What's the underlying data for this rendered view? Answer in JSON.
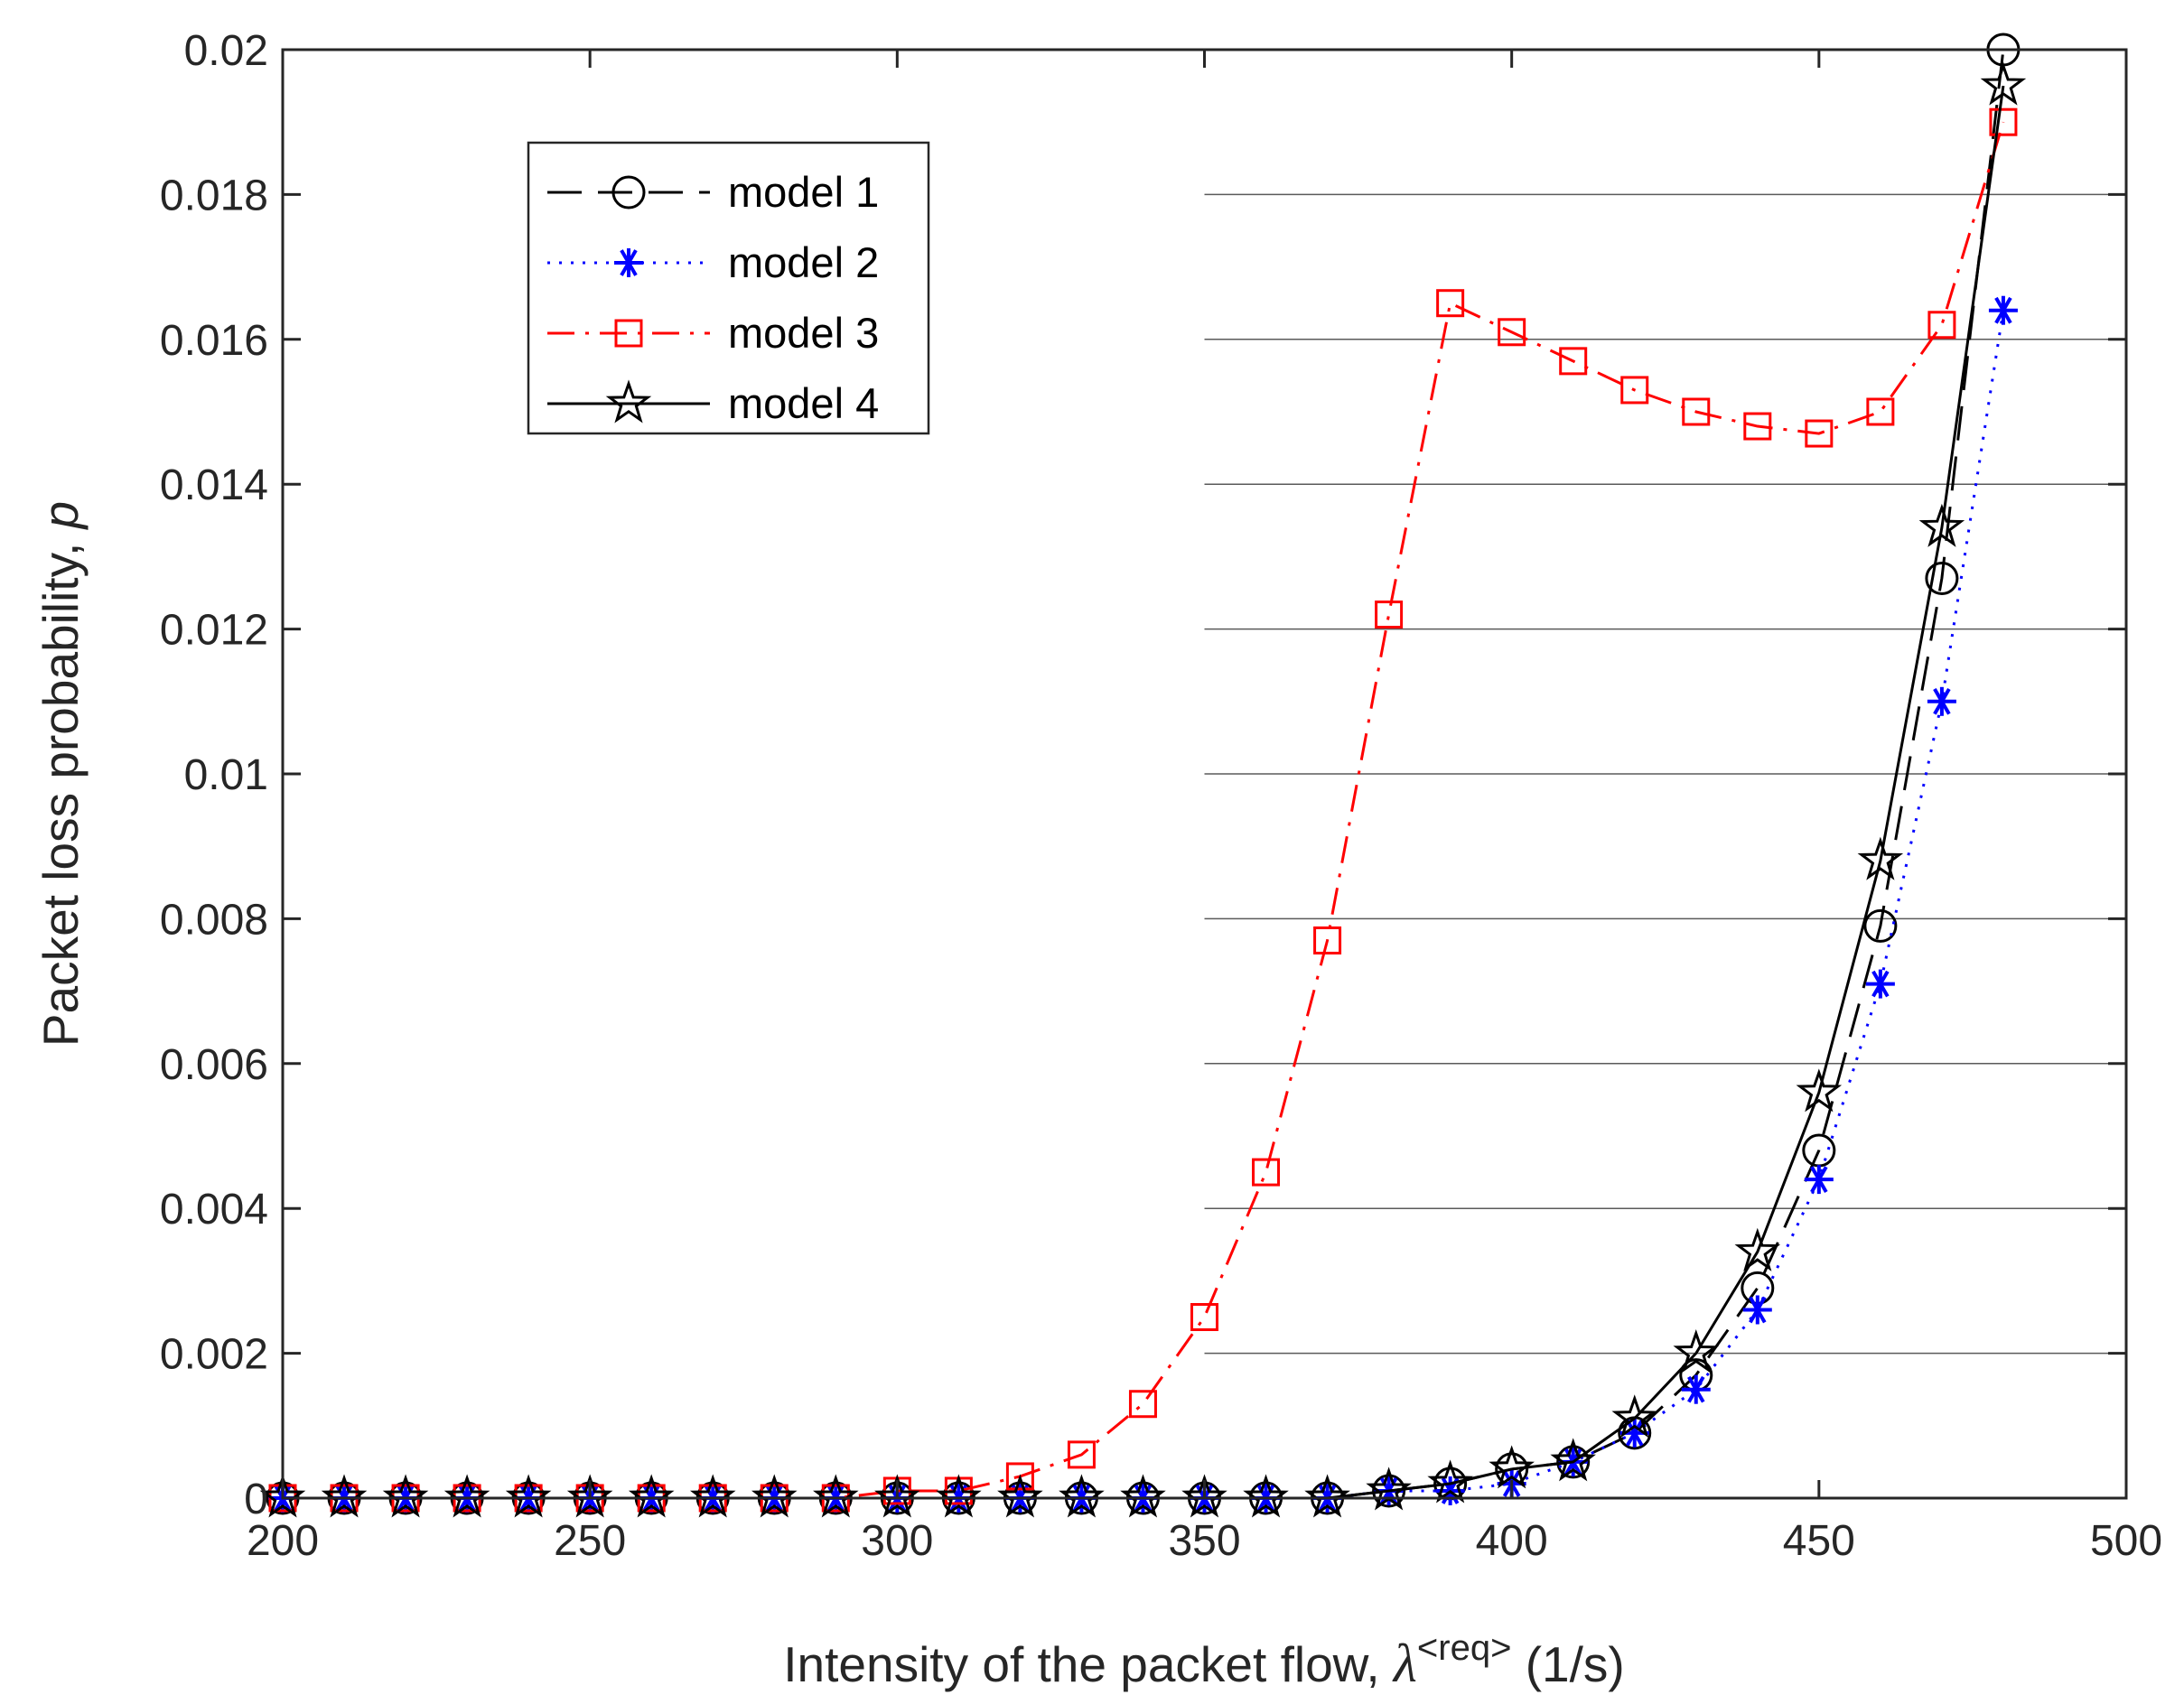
{
  "chart_data": {
    "type": "line",
    "xlabel": "Intensity of the packet flow, ",
    "xlabel_symbol": "λ",
    "xlabel_superscript": "<req>",
    "xlabel_unit": " (1/s)",
    "ylabel": "Packet loss probability, ",
    "ylabel_symbol": "p",
    "xlim": [
      200,
      500
    ],
    "ylim": [
      0,
      0.02
    ],
    "xticks": [
      "200",
      "250",
      "300",
      "350",
      "400",
      "450",
      "500"
    ],
    "yticks": [
      "0",
      "0.002",
      "0.004",
      "0.006",
      "0.008",
      "0.01",
      "0.012",
      "0.014",
      "0.016",
      "0.018",
      "0.02"
    ],
    "grid": "partial horizontal gridlines (x from 350 to 500)",
    "legend_position": "top-left",
    "x": [
      200,
      210,
      220,
      230,
      240,
      250,
      260,
      270,
      280,
      290,
      300,
      310,
      320,
      330,
      340,
      350,
      360,
      370,
      380,
      390,
      400,
      410,
      420,
      430,
      440,
      450,
      460,
      470,
      480
    ],
    "series": [
      {
        "name": "model 1",
        "color": "#000000",
        "line_style": "dashed",
        "marker": "circle",
        "values": [
          0,
          0,
          0,
          0,
          0,
          0,
          0,
          0,
          0,
          0,
          0,
          0,
          0,
          0,
          0,
          0,
          0,
          0,
          0.0001,
          0.0002,
          0.0004,
          0.0005,
          0.0009,
          0.0017,
          0.0029,
          0.0048,
          0.0079,
          0.0127,
          0.02
        ]
      },
      {
        "name": "model 2",
        "color": "#0000ff",
        "line_style": "dotted",
        "marker": "asterisk",
        "values": [
          0,
          0,
          0,
          0,
          0,
          0,
          0,
          0,
          0,
          0,
          0,
          0,
          0,
          0,
          0,
          0,
          0,
          0,
          0.0001,
          0.0001,
          0.0002,
          0.0005,
          0.0009,
          0.0015,
          0.0026,
          0.0044,
          0.0071,
          0.011,
          0.0164
        ]
      },
      {
        "name": "model 3",
        "color": "#ff0000",
        "line_style": "dash-dot",
        "marker": "square",
        "values": [
          0,
          0,
          0,
          0,
          0,
          0,
          0,
          0,
          0,
          0,
          0.0001,
          0.0001,
          0.0003,
          0.0006,
          0.0013,
          0.0025,
          0.0045,
          0.0077,
          0.0122,
          0.0165,
          0.0161,
          0.0157,
          0.0153,
          0.015,
          0.0148,
          0.0147,
          0.015,
          0.0162,
          0.019
        ]
      },
      {
        "name": "model 4",
        "color": "#000000",
        "line_style": "solid",
        "marker": "pentagram",
        "values": [
          0,
          0,
          0,
          0,
          0,
          0,
          0,
          0,
          0,
          0,
          0,
          0,
          0,
          0,
          0,
          0,
          0,
          0,
          0.0001,
          0.0002,
          0.0004,
          0.0005,
          0.0011,
          0.002,
          0.0034,
          0.0056,
          0.0088,
          0.0134,
          0.0195
        ]
      }
    ]
  }
}
